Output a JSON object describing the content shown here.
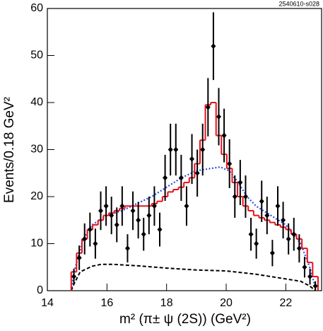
{
  "chart_data": {
    "type": "errorbar",
    "annotation": "2540610-s028",
    "xlabel": "m² (π± ψ (2S)) (GeV²)",
    "ylabel": "Events/0.18 GeV²",
    "xlim": [
      14,
      23.2
    ],
    "ylim": [
      0,
      60
    ],
    "xticks": [
      14,
      16,
      18,
      20,
      22
    ],
    "yticks": [
      0,
      10,
      20,
      30,
      40,
      50,
      60
    ],
    "points": {
      "color": "#000000",
      "x": [
        14.89,
        15.07,
        15.25,
        15.43,
        15.61,
        15.79,
        15.97,
        16.15,
        16.33,
        16.51,
        16.69,
        16.87,
        17.05,
        17.23,
        17.41,
        17.59,
        17.77,
        17.95,
        18.13,
        18.31,
        18.49,
        18.67,
        18.85,
        19.03,
        19.21,
        19.39,
        19.57,
        19.75,
        19.93,
        20.11,
        20.29,
        20.47,
        20.65,
        20.83,
        21.01,
        21.19,
        21.37,
        21.55,
        21.73,
        21.91,
        22.09,
        22.27,
        22.45,
        22.63,
        22.81,
        22.99
      ],
      "values": [
        3,
        7,
        11,
        13,
        10,
        17,
        18,
        16,
        14,
        18,
        9,
        17,
        15,
        12,
        16,
        18,
        13,
        24,
        30,
        30,
        24,
        18,
        28,
        25,
        30,
        39,
        52,
        37,
        33,
        27,
        20,
        23,
        20,
        12,
        10,
        19,
        16,
        8,
        18,
        15,
        11,
        12,
        9,
        5,
        3,
        1
      ],
      "errors": [
        1.7,
        2.6,
        3.3,
        3.6,
        3.2,
        4.1,
        4.2,
        4,
        3.7,
        4.2,
        3,
        4.1,
        3.9,
        3.5,
        4,
        4.2,
        3.6,
        4.9,
        5.5,
        5.5,
        4.9,
        4.2,
        5.3,
        5,
        5.5,
        6.2,
        7.2,
        6.1,
        5.7,
        5.2,
        4.5,
        4.8,
        4.5,
        3.5,
        3.2,
        4.4,
        4,
        2.8,
        4.2,
        3.9,
        3.3,
        3.5,
        3,
        2.2,
        1.7,
        1
      ]
    },
    "histogram": {
      "color": "#e8101a",
      "bins": [
        14.8,
        14.98,
        15.16,
        15.34,
        15.52,
        15.7,
        15.88,
        16.06,
        16.24,
        16.42,
        16.6,
        16.78,
        16.96,
        17.14,
        17.32,
        17.5,
        17.68,
        17.86,
        18.04,
        18.22,
        18.4,
        18.58,
        18.76,
        18.94,
        19.12,
        19.3,
        19.48,
        19.66,
        19.84,
        20.02,
        20.2,
        20.38,
        20.56,
        20.74,
        20.92,
        21.1,
        21.28,
        21.46,
        21.64,
        21.82,
        22.0,
        22.18,
        22.36,
        22.54,
        22.72,
        22.9,
        23.08
      ],
      "values": [
        4,
        8,
        11,
        13,
        14,
        15,
        16,
        16.5,
        17,
        17.5,
        18,
        18,
        18,
        18,
        18,
        18.5,
        19,
        20,
        21,
        21.5,
        22,
        23,
        24,
        27,
        32,
        39.5,
        40,
        33,
        29,
        26,
        23,
        20,
        18,
        17,
        16,
        15.5,
        15,
        14.5,
        14,
        13.5,
        13,
        12,
        11,
        9,
        6,
        3
      ]
    },
    "curves": [
      {
        "color": "#2a4fe8",
        "style": "dotted",
        "x": [
          14.8,
          14.9,
          15.2,
          15.5,
          16,
          16.5,
          17,
          17.5,
          18,
          18.5,
          19,
          19.5,
          19.8,
          20.1,
          20.4,
          20.7,
          21,
          21.5,
          22,
          22.5,
          22.8,
          23
        ],
        "values": [
          0,
          4,
          11,
          14,
          16,
          17,
          18.5,
          20,
          22,
          24,
          25.5,
          26,
          26.3,
          25.5,
          23,
          20,
          18,
          16,
          14,
          10,
          5,
          0.5
        ]
      },
      {
        "color": "#000000",
        "style": "dashed",
        "x": [
          14.8,
          14.9,
          15.1,
          15.5,
          15.8,
          16.2,
          17,
          18,
          19,
          20,
          21,
          22,
          22.5,
          22.8,
          23
        ],
        "values": [
          0,
          1.5,
          4,
          5.2,
          5.6,
          5.6,
          5.3,
          4.8,
          4.4,
          4.2,
          3.5,
          2.5,
          2,
          1,
          0
        ]
      }
    ]
  }
}
